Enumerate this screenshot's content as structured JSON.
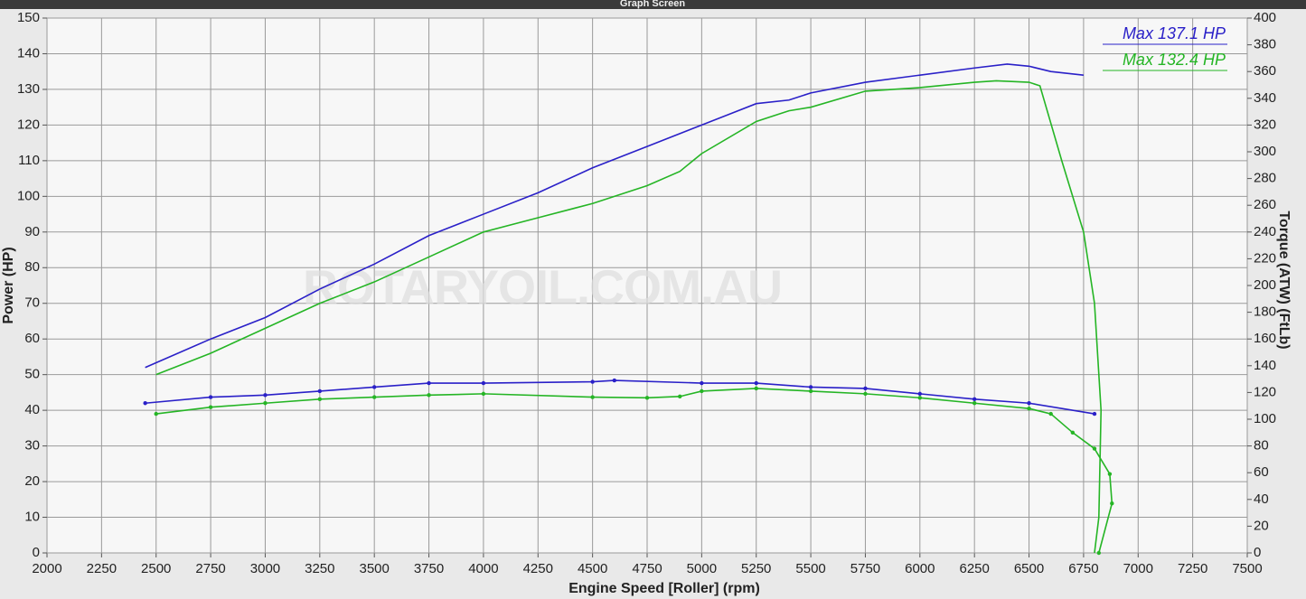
{
  "window": {
    "title": "Graph Screen"
  },
  "chart_data": {
    "type": "line",
    "watermark": "ROTARYOIL.COM.AU",
    "x_label": "Engine Speed [Roller] (rpm)",
    "y_label": "Power (HP)",
    "y2_label": "Torque (ATW) (FtLb)",
    "annotations": [
      {
        "text": "Max 137.1 HP",
        "color": "#2a20c8"
      },
      {
        "text": "Max 132.4 HP",
        "color": "#25b525"
      }
    ],
    "xlim": [
      2000,
      7500
    ],
    "xticks": [
      2000,
      2250,
      2500,
      2750,
      3000,
      3250,
      3500,
      3750,
      4000,
      4250,
      4500,
      4750,
      5000,
      5250,
      5500,
      5750,
      6000,
      6250,
      6500,
      6750,
      7000,
      7250,
      7500
    ],
    "ylim": [
      0,
      150
    ],
    "yticks": [
      0,
      10,
      20,
      30,
      40,
      50,
      60,
      70,
      80,
      90,
      100,
      110,
      120,
      130,
      140,
      150
    ],
    "y2lim": [
      0,
      400
    ],
    "y2ticks": [
      0,
      20,
      40,
      60,
      80,
      100,
      120,
      140,
      160,
      180,
      200,
      220,
      240,
      260,
      280,
      300,
      320,
      340,
      360,
      380,
      400
    ],
    "grid": true,
    "series": [
      {
        "color": "#2a20c8",
        "x": [
          2450,
          2750,
          3000,
          3250,
          3500,
          3750,
          4000,
          4250,
          4500,
          4750,
          5000,
          5250,
          5400,
          5500,
          5750,
          6000,
          6250,
          6400,
          6500,
          6600,
          6750
        ],
        "values": [
          52,
          60,
          66,
          74,
          81,
          89,
          95,
          101,
          108,
          114,
          120,
          126,
          127,
          129,
          132,
          134,
          136,
          137.1,
          136.5,
          135,
          134
        ]
      },
      {
        "color": "#25b525",
        "x": [
          2500,
          2750,
          3000,
          3250,
          3500,
          3750,
          4000,
          4250,
          4500,
          4750,
          4900,
          5000,
          5250,
          5400,
          5500,
          5750,
          6000,
          6250,
          6350,
          6500,
          6550,
          6650,
          6750,
          6800,
          6830,
          6820,
          6800
        ],
        "values": [
          50,
          56,
          63,
          70,
          76,
          83,
          90,
          94,
          98,
          103,
          107,
          112,
          121,
          124,
          125,
          129.5,
          130.5,
          132,
          132.4,
          132,
          131,
          110,
          90,
          70,
          40,
          10,
          0
        ]
      },
      {
        "color": "#2a20c8",
        "axis": "y2",
        "x": [
          2450,
          2750,
          3000,
          3250,
          3500,
          3750,
          4000,
          4500,
          4600,
          5000,
          5250,
          5500,
          5750,
          6000,
          6250,
          6500,
          6800
        ],
        "values": [
          112,
          116.5,
          118,
          121,
          124,
          127,
          127,
          128,
          129,
          127,
          127,
          124,
          123,
          119,
          115,
          112,
          104
        ]
      },
      {
        "color": "#25b525",
        "axis": "y2",
        "x": [
          2500,
          2750,
          3000,
          3250,
          3500,
          3750,
          4000,
          4500,
          4750,
          4900,
          5000,
          5250,
          5500,
          5750,
          6000,
          6250,
          6500,
          6600,
          6700,
          6800,
          6870,
          6880,
          6820
        ],
        "values": [
          104,
          109,
          112,
          115,
          116.5,
          118,
          119,
          116.5,
          116,
          117,
          121,
          123,
          121,
          119,
          116,
          112,
          108,
          104,
          90,
          78,
          59,
          37,
          0
        ]
      }
    ]
  }
}
